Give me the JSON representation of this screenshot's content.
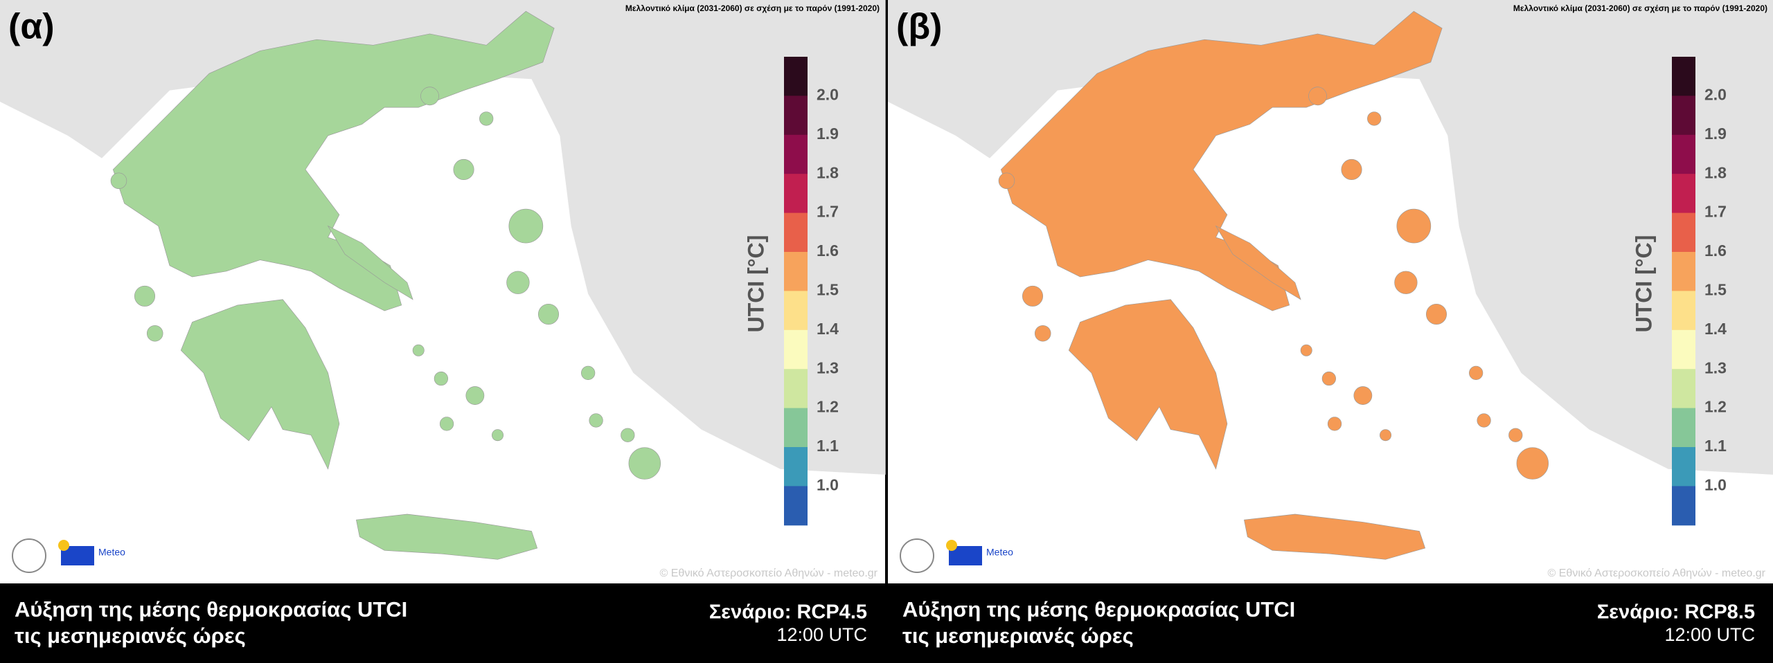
{
  "panels": [
    {
      "label": "(α)",
      "header": "Μελλοντικό κλίμα (2031-2060) σε σχέση με το παρόν (1991-2020)",
      "caption": [
        "Αύξηση της μέσης θερμοκρασίας UTCI",
        "τις μεσημεριανές ώρες"
      ],
      "scenario": "Σενάριο: RCP4.5",
      "time": "12:00 UTC",
      "copyright": "© Εθνικό Αστεροσκοπείο Αθηνών - meteo.gr",
      "logo": "Meteo"
    },
    {
      "label": "(β)",
      "header": "Μελλοντικό κλίμα (2031-2060) σε σχέση με το παρόν (1991-2020)",
      "caption": [
        "Αύξηση της μέσης θερμοκρασίας UTCI",
        "τις μεσημεριανές ώρες"
      ],
      "scenario": "Σενάριο: RCP8.5",
      "time": "12:00 UTC",
      "copyright": "© Εθνικό Αστεροσκοπείο Αθηνών - meteo.gr",
      "logo": "Meteo"
    }
  ],
  "colorbar": {
    "label": "UTCI [°C]",
    "ticks": [
      "2.0",
      "1.9",
      "1.8",
      "1.7",
      "1.6",
      "1.5",
      "1.4",
      "1.3",
      "1.2",
      "1.1",
      "1.0"
    ]
  }
}
